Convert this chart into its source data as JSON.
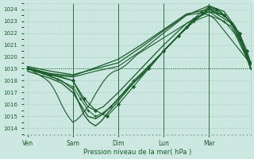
{
  "xlabel": "Pression niveau de la mer( hPa )",
  "bg_color": "#cce8e0",
  "grid_major_color": "#b0d8ce",
  "grid_minor_color": "#c4e2da",
  "text_color": "#1a5c2a",
  "line_color": "#1a5c2a",
  "ylim": [
    1013.5,
    1024.5
  ],
  "yticks": [
    1014,
    1015,
    1016,
    1017,
    1018,
    1019,
    1020,
    1021,
    1022,
    1023,
    1024
  ],
  "xtick_labels": [
    "Ven",
    "Sam",
    "Dim",
    "Lun",
    "Mar"
  ],
  "xtick_positions": [
    0,
    24,
    48,
    72,
    96
  ],
  "xlim": [
    -2,
    118
  ],
  "vlines": [
    24,
    48,
    72,
    96
  ],
  "lines": [
    {
      "x": [
        0,
        2,
        4,
        6,
        8,
        10,
        12,
        14,
        16,
        18,
        20,
        22,
        24,
        26,
        28,
        30,
        32,
        34,
        36,
        38,
        40,
        42,
        44,
        46,
        48,
        50,
        52,
        54,
        56,
        58,
        60,
        62,
        64,
        66,
        68,
        70,
        72,
        74,
        76,
        78,
        80,
        82,
        84,
        86,
        88,
        90,
        92,
        94,
        96,
        98,
        100,
        102,
        104,
        106,
        108,
        110,
        112,
        114,
        116,
        118
      ],
      "y": [
        1019.0,
        1018.9,
        1018.7,
        1018.5,
        1018.3,
        1018.1,
        1017.8,
        1017.3,
        1016.7,
        1016.0,
        1015.4,
        1014.9,
        1014.5,
        1014.7,
        1015.0,
        1015.4,
        1015.8,
        1016.3,
        1016.9,
        1017.4,
        1017.9,
        1018.3,
        1018.6,
        1018.8,
        1018.9,
        1019.1,
        1019.3,
        1019.6,
        1019.9,
        1020.2,
        1020.4,
        1020.6,
        1020.8,
        1021.0,
        1021.2,
        1021.4,
        1021.6,
        1021.8,
        1022.0,
        1022.2,
        1022.4,
        1022.6,
        1022.8,
        1023.0,
        1023.2,
        1023.4,
        1023.5,
        1023.6,
        1023.5,
        1023.3,
        1023.0,
        1022.6,
        1022.2,
        1021.8,
        1021.4,
        1021.0,
        1020.6,
        1020.2,
        1019.8,
        1019.3
      ],
      "style": "-",
      "lw": 0.8
    },
    {
      "x": [
        0,
        118
      ],
      "y": [
        1019.0,
        1019.0
      ],
      "style": ":",
      "lw": 0.7
    },
    {
      "x": [
        0,
        12,
        24,
        36,
        48,
        60,
        72,
        84,
        96,
        108,
        118
      ],
      "y": [
        1019.0,
        1018.5,
        1018.3,
        1018.8,
        1019.2,
        1020.5,
        1022.0,
        1023.5,
        1023.8,
        1022.5,
        1019.2
      ],
      "style": "-",
      "lw": 0.8
    },
    {
      "x": [
        0,
        8,
        16,
        24,
        28,
        32,
        36,
        40,
        44,
        48,
        56,
        64,
        72,
        80,
        88,
        96,
        104,
        112,
        118
      ],
      "y": [
        1019.0,
        1018.6,
        1018.1,
        1017.5,
        1016.5,
        1015.5,
        1015.0,
        1015.3,
        1015.8,
        1016.5,
        1018.0,
        1019.2,
        1020.5,
        1021.8,
        1023.0,
        1023.5,
        1023.0,
        1021.5,
        1019.0
      ],
      "style": "-",
      "marker": "+",
      "lw": 0.7,
      "ms": 3
    },
    {
      "x": [
        0,
        6,
        12,
        18,
        24,
        27,
        30,
        33,
        36,
        39,
        42,
        48,
        56,
        64,
        72,
        80,
        88,
        96,
        104,
        112,
        118
      ],
      "y": [
        1019.0,
        1018.7,
        1018.4,
        1018.0,
        1017.3,
        1016.2,
        1015.1,
        1014.5,
        1014.2,
        1014.6,
        1015.2,
        1016.3,
        1017.8,
        1019.0,
        1020.5,
        1021.8,
        1023.0,
        1024.0,
        1023.5,
        1022.0,
        1019.0
      ],
      "style": "-",
      "lw": 1.0
    },
    {
      "x": [
        0,
        6,
        12,
        18,
        24,
        28,
        32,
        36,
        40,
        44,
        48,
        54,
        60,
        66,
        72,
        78,
        84,
        90,
        96,
        102,
        108,
        114,
        118
      ],
      "y": [
        1018.8,
        1018.5,
        1018.2,
        1017.8,
        1017.0,
        1016.0,
        1015.0,
        1014.8,
        1015.2,
        1015.8,
        1016.5,
        1017.5,
        1018.5,
        1019.5,
        1020.5,
        1021.5,
        1022.5,
        1023.3,
        1024.1,
        1023.8,
        1022.8,
        1021.0,
        1019.0
      ],
      "style": "-",
      "lw": 1.0
    },
    {
      "x": [
        0,
        12,
        24,
        30,
        36,
        42,
        48,
        56,
        64,
        72,
        80,
        84,
        88,
        92,
        96,
        100,
        104,
        108,
        112,
        116,
        118
      ],
      "y": [
        1019.0,
        1018.5,
        1018.0,
        1016.5,
        1015.5,
        1015.0,
        1016.0,
        1017.5,
        1019.0,
        1020.5,
        1021.8,
        1022.5,
        1023.2,
        1023.8,
        1024.2,
        1024.0,
        1023.5,
        1022.8,
        1022.0,
        1020.5,
        1019.5
      ],
      "style": "-",
      "marker": "D",
      "lw": 0.8,
      "ms": 2
    },
    {
      "x": [
        0,
        12,
        24,
        36,
        48,
        60,
        72,
        84,
        96,
        104,
        110,
        118
      ],
      "y": [
        1019.2,
        1018.8,
        1018.5,
        1019.0,
        1019.5,
        1020.8,
        1022.2,
        1023.5,
        1024.3,
        1023.8,
        1022.5,
        1019.5
      ],
      "style": "-",
      "lw": 0.9
    },
    {
      "x": [
        0,
        12,
        24,
        36,
        48,
        60,
        72,
        84,
        96,
        108,
        118
      ],
      "y": [
        1019.1,
        1018.6,
        1018.4,
        1019.1,
        1019.8,
        1021.0,
        1022.3,
        1023.6,
        1024.0,
        1022.8,
        1019.3
      ],
      "style": "-",
      "lw": 0.9
    },
    {
      "x": [
        0,
        12,
        24,
        28,
        32,
        36,
        40,
        48,
        60,
        72,
        84,
        96,
        104,
        112,
        118
      ],
      "y": [
        1019.0,
        1018.6,
        1018.0,
        1016.8,
        1015.8,
        1015.5,
        1015.8,
        1017.0,
        1019.0,
        1021.0,
        1022.8,
        1023.8,
        1023.5,
        1022.0,
        1019.2
      ],
      "style": "-",
      "lw": 0.9
    }
  ]
}
